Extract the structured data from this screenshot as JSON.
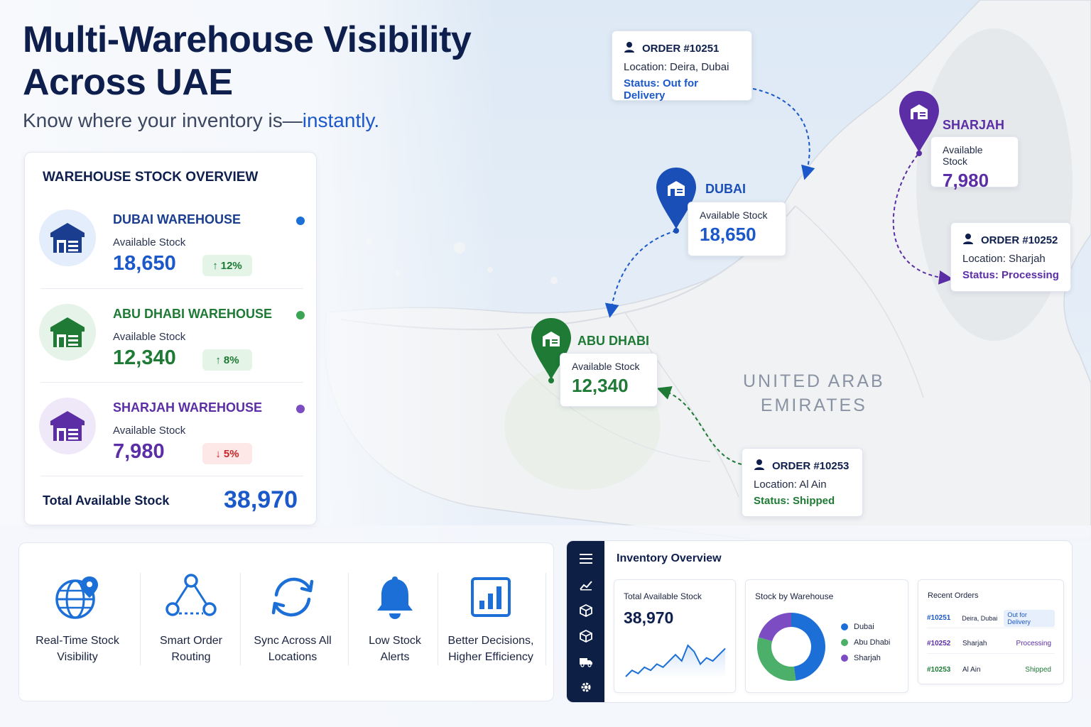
{
  "hero": {
    "title_line1": "Multi-Warehouse Visibility",
    "title_line2": "Across UAE",
    "subtitle_plain": "Know where your inventory is—",
    "subtitle_accent": "instantly."
  },
  "colors": {
    "navy": "#0e1f4d",
    "dubai_blue": "#1b58c9",
    "abu_dhabi_green": "#1e7a35",
    "sharjah_purple": "#5b2ea6",
    "alert_red": "#c62828",
    "sidebar": "#0d1f45"
  },
  "overview": {
    "title": "WAREHOUSE STOCK OVERVIEW",
    "warehouses": [
      {
        "name": "DUBAI WAREHOUSE",
        "label": "Available Stock",
        "value": "18,650",
        "change": "12%",
        "direction": "up",
        "icon": "warehouse-icon"
      },
      {
        "name": "ABU DHABI WAREHOUSE",
        "label": "Available Stock",
        "value": "12,340",
        "change": "8%",
        "direction": "up",
        "icon": "warehouse-icon"
      },
      {
        "name": "SHARJAH WAREHOUSE",
        "label": "Available Stock",
        "value": "7,980",
        "change": "5%",
        "direction": "down",
        "icon": "warehouse-icon"
      }
    ],
    "total_label": "Total Available Stock",
    "total_value": "38,970"
  },
  "map": {
    "country_line1": "UNITED ARAB",
    "country_line2": "EMIRATES",
    "pins": {
      "dubai": {
        "city": "DUBAI",
        "label": "Available Stock",
        "value": "18,650"
      },
      "abu_dhabi": {
        "city": "ABU DHABI",
        "label": "Available Stock",
        "value": "12,340"
      },
      "sharjah": {
        "city": "SHARJAH",
        "label": "Available Stock",
        "value": "7,980"
      }
    },
    "orders": [
      {
        "id": "ORDER #10251",
        "location": "Location: Deira, Dubai",
        "status_label": "Status:",
        "status": "Out for Delivery"
      },
      {
        "id": "ORDER #10252",
        "location": "Location: Sharjah",
        "status_label": "Status:",
        "status": "Processing"
      },
      {
        "id": "ORDER #10253",
        "location": "Location: Al Ain",
        "status_label": "Status:",
        "status": "Shipped"
      }
    ]
  },
  "features": [
    {
      "line1": "Real-Time Stock",
      "line2": "Visibility",
      "icon": "globe-pin-icon"
    },
    {
      "line1": "Smart Order",
      "line2": "Routing",
      "icon": "routing-icon"
    },
    {
      "line1": "Sync Across All",
      "line2": "Locations",
      "icon": "sync-icon"
    },
    {
      "line1": "Low Stock",
      "line2": "Alerts",
      "icon": "bell-icon"
    },
    {
      "line1": "Better Decisions,",
      "line2": "Higher Efficiency",
      "icon": "bar-chart-icon"
    }
  ],
  "dashboard": {
    "title": "Inventory Overview",
    "total_panel": {
      "title": "Total Available Stock",
      "value": "38,970"
    },
    "donut_panel": {
      "title": "Stock by Warehouse"
    },
    "orders_panel": {
      "title": "Recent Orders",
      "rows": [
        {
          "id": "#10251",
          "location": "Deira, Dubai",
          "status": "Out for Delivery"
        },
        {
          "id": "#10252",
          "location": "Sharjah",
          "status": "Processing"
        },
        {
          "id": "#10253",
          "location": "Al Ain",
          "status": "Shipped"
        }
      ]
    }
  },
  "chart_data": [
    {
      "type": "line",
      "title": "Total Available Stock",
      "values": [
        2,
        4,
        3,
        5,
        4,
        6,
        5,
        7,
        9,
        7,
        12,
        10,
        6,
        8,
        7,
        9,
        11
      ]
    },
    {
      "type": "pie",
      "title": "Stock by Warehouse",
      "categories": [
        "Dubai",
        "Abu Dhabi",
        "Sharjah"
      ],
      "values": [
        18650,
        12340,
        7980
      ],
      "colors": [
        "#1b6fd6",
        "#4caf6a",
        "#7b4cc2"
      ]
    }
  ]
}
